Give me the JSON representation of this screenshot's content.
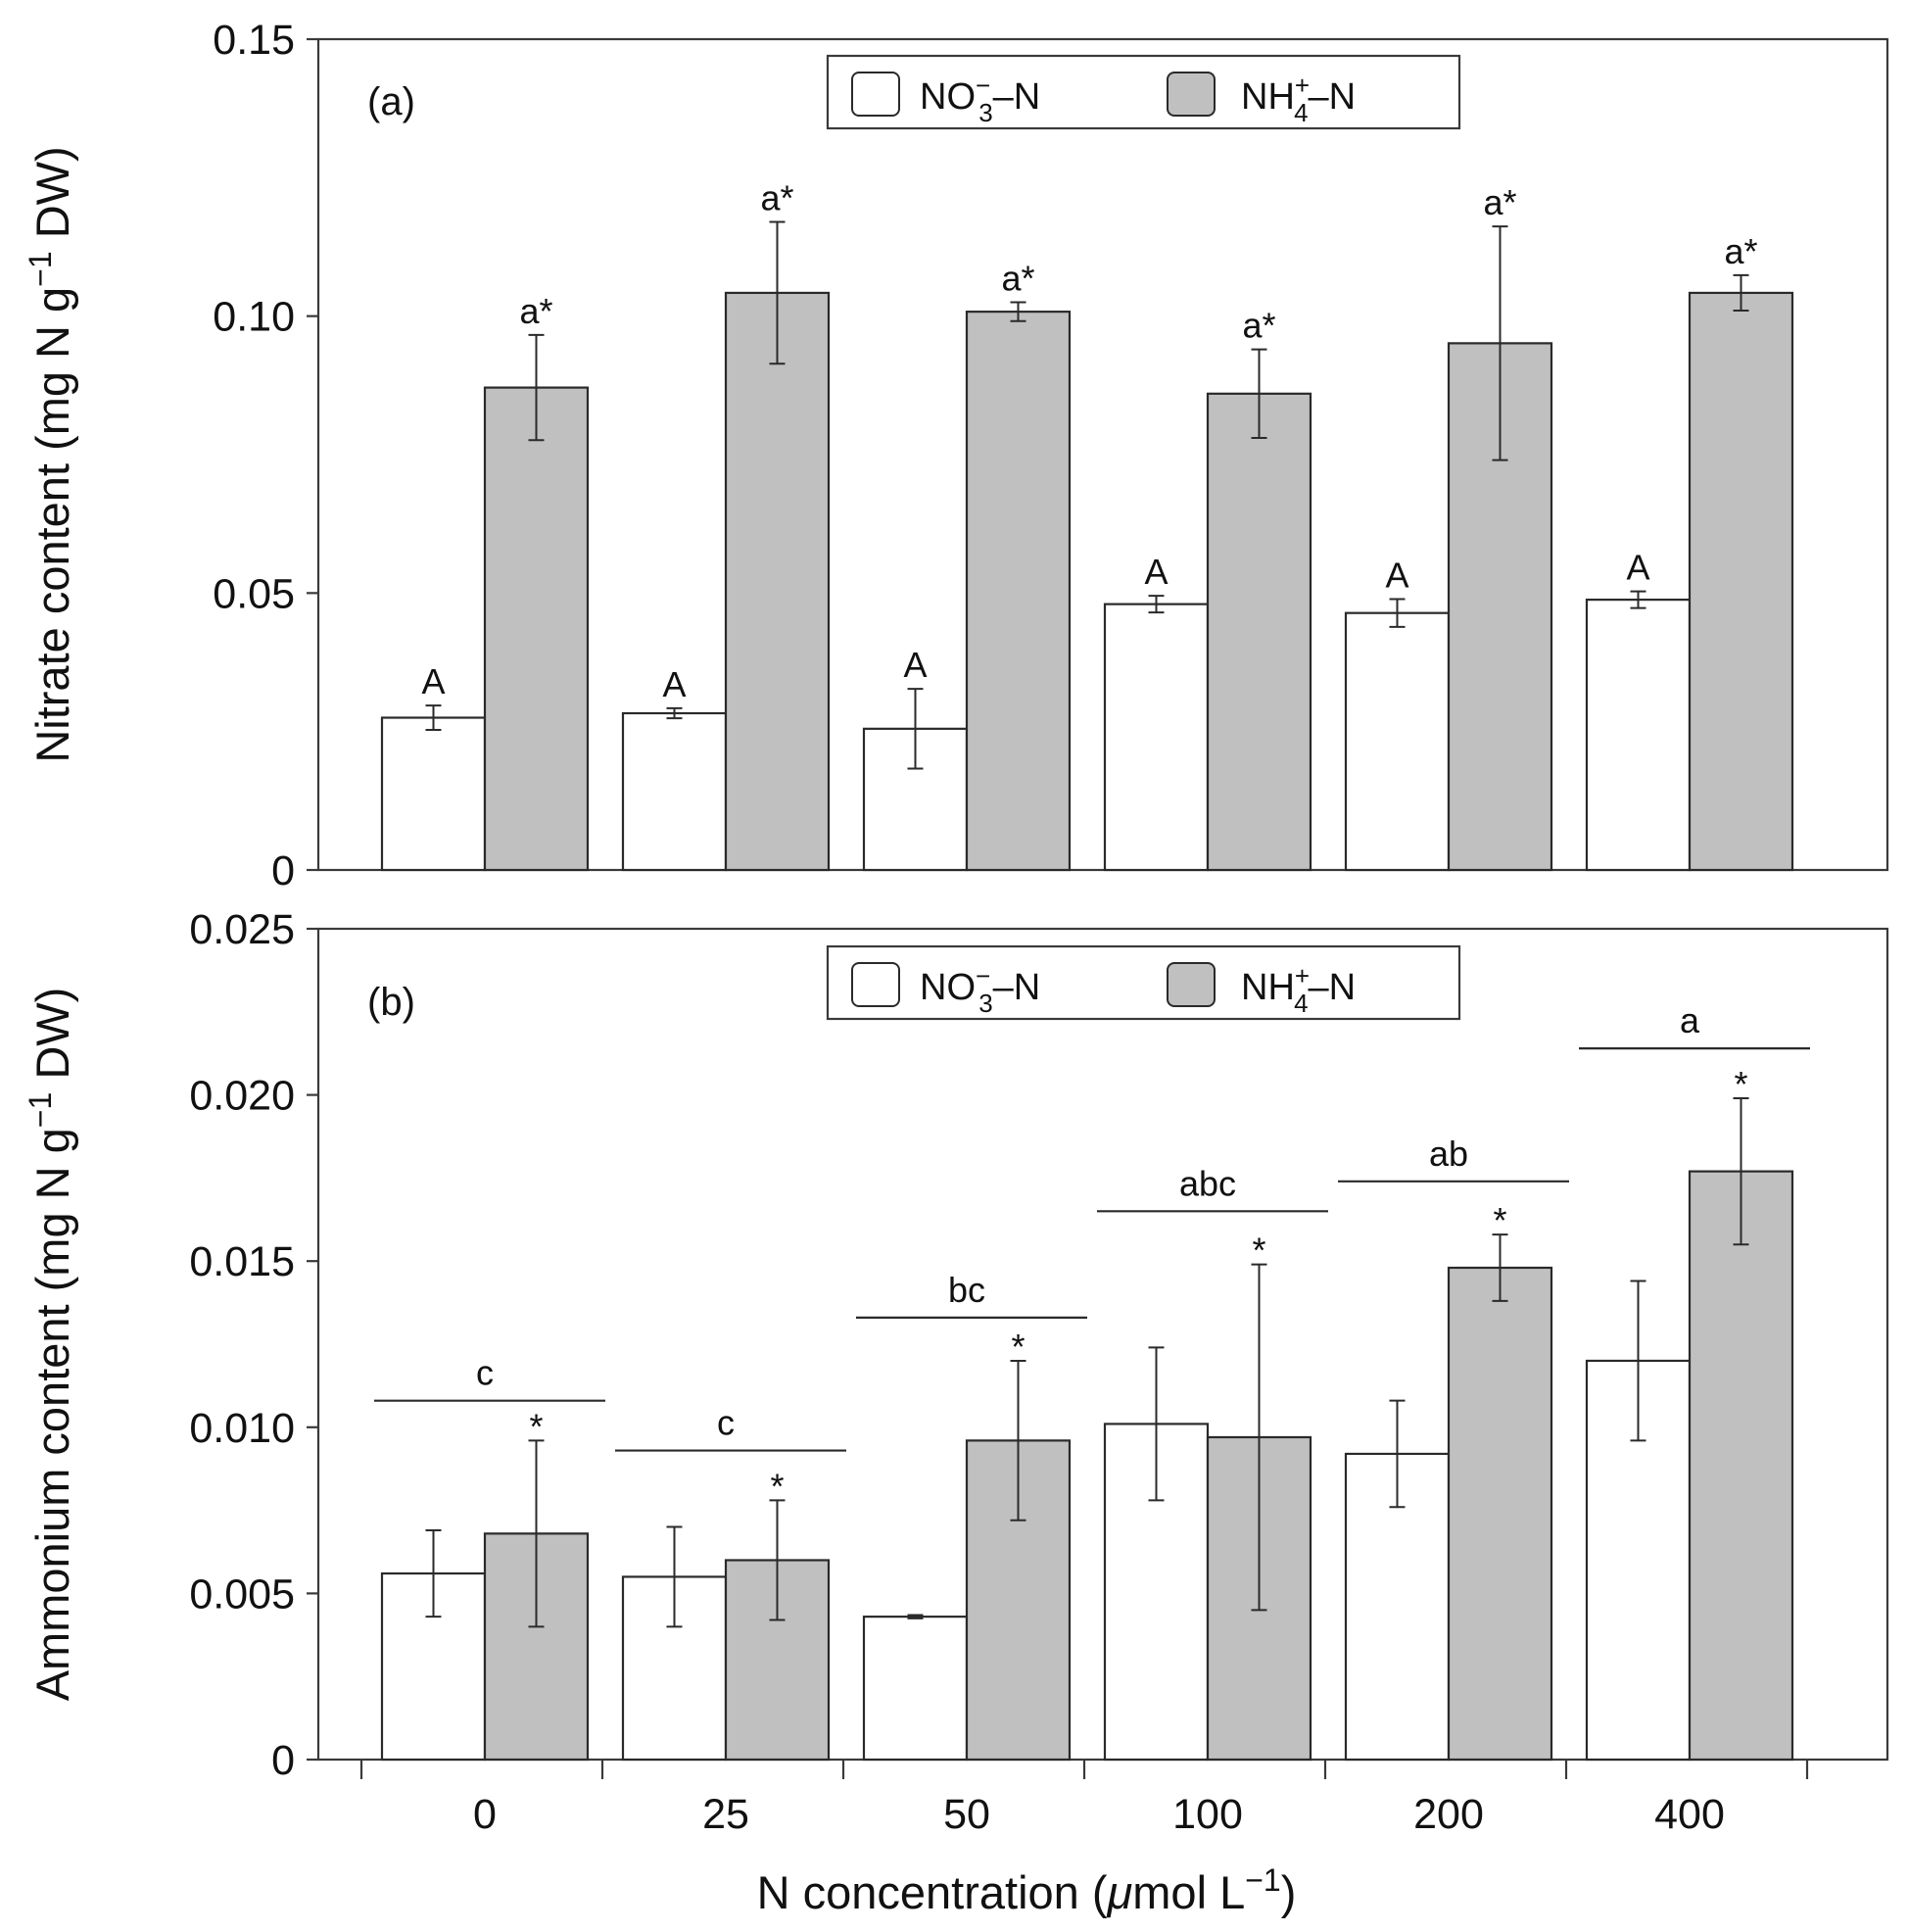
{
  "chart_data": [
    {
      "panel": "(a)",
      "type": "bar",
      "ylabel": "Nitrate content (mg N g⁻¹ DW)",
      "ylim": [
        0,
        0.15
      ],
      "yticks": [
        "0",
        "0.05",
        "0.10",
        "0.15"
      ],
      "ytick_values": [
        0,
        0.05,
        0.1,
        0.15
      ],
      "legend": {
        "placement": "top-center",
        "entries": [
          "NO3–N",
          "NH4–N"
        ]
      },
      "series": [
        {
          "name": "NO3–N",
          "color": "#ffffff",
          "values": [
            0.0275,
            0.0283,
            0.0255,
            0.048,
            0.0464,
            0.0488
          ],
          "errors": [
            0.0022,
            0.0009,
            0.0072,
            0.0015,
            0.0025,
            0.0015
          ],
          "labels": [
            "A",
            "A",
            "A",
            "A",
            "A",
            "A"
          ]
        },
        {
          "name": "NH4–N",
          "color": "#c0c0c0",
          "values": [
            0.0871,
            0.1042,
            0.1008,
            0.086,
            0.0951,
            0.1042
          ],
          "errors": [
            0.0095,
            0.0128,
            0.0017,
            0.008,
            0.0211,
            0.0032
          ],
          "labels": [
            "a*",
            "a*",
            "a*",
            "a*",
            "a*",
            "a*"
          ]
        }
      ]
    },
    {
      "panel": "(b)",
      "type": "bar",
      "ylabel": "Ammonium content (mg N g⁻¹ DW)",
      "ylim": [
        0,
        0.025
      ],
      "yticks": [
        "0",
        "0.005",
        "0.010",
        "0.015",
        "0.020",
        "0.025"
      ],
      "ytick_values": [
        0,
        0.005,
        0.01,
        0.015,
        0.02,
        0.025
      ],
      "legend": {
        "placement": "top-center",
        "entries": [
          "NO3–N",
          "NH4–N"
        ]
      },
      "series": [
        {
          "name": "NO3–N",
          "color": "#ffffff",
          "values": [
            0.0056,
            0.0055,
            0.0043,
            0.0101,
            0.0092,
            0.012
          ],
          "errors": [
            0.0013,
            0.0015,
            5e-05,
            0.0023,
            0.0016,
            0.0024
          ],
          "labels": [
            "",
            "",
            "",
            "",
            "",
            ""
          ]
        },
        {
          "name": "NH4–N",
          "color": "#c0c0c0",
          "values": [
            0.0068,
            0.006,
            0.0096,
            0.0097,
            0.0148,
            0.0177
          ],
          "errors": [
            0.0028,
            0.0018,
            0.0024,
            0.0052,
            0.001,
            0.0022
          ],
          "labels": [
            "*",
            "*",
            "*",
            "*",
            "*",
            "*"
          ]
        }
      ],
      "group_labels": [
        "c",
        "c",
        "bc",
        "abc",
        "ab",
        "a"
      ],
      "group_label_levels": [
        0.0108,
        0.0093,
        0.0133,
        0.0165,
        0.0174,
        0.0214
      ]
    }
  ],
  "x": {
    "categories": [
      "0",
      "25",
      "50",
      "100",
      "200",
      "400"
    ],
    "xlabel": "N concentration (μmol L⁻¹)"
  },
  "legend_text": {
    "no3_base": "NO",
    "no3_sub": "3",
    "no3_sup": "−",
    "no3_tail": "–N",
    "nh4_base": "NH",
    "nh4_sub": "4",
    "nh4_sup": "+",
    "nh4_tail": "–N"
  },
  "axis_title_parts": {
    "a_prefix": "Nitrate content (mg N g",
    "b_prefix": "Ammonium content (mg N g",
    "sup": "−1",
    "suffix": " DW)",
    "x_prefix": "N concentration (",
    "x_mu": "μ",
    "x_mid": "mol L",
    "x_sup": "−1",
    "x_suffix": ")"
  },
  "colors": {
    "no3_fill": "#ffffff",
    "nh4_fill": "#c0c0c0",
    "ink": "#111111"
  }
}
